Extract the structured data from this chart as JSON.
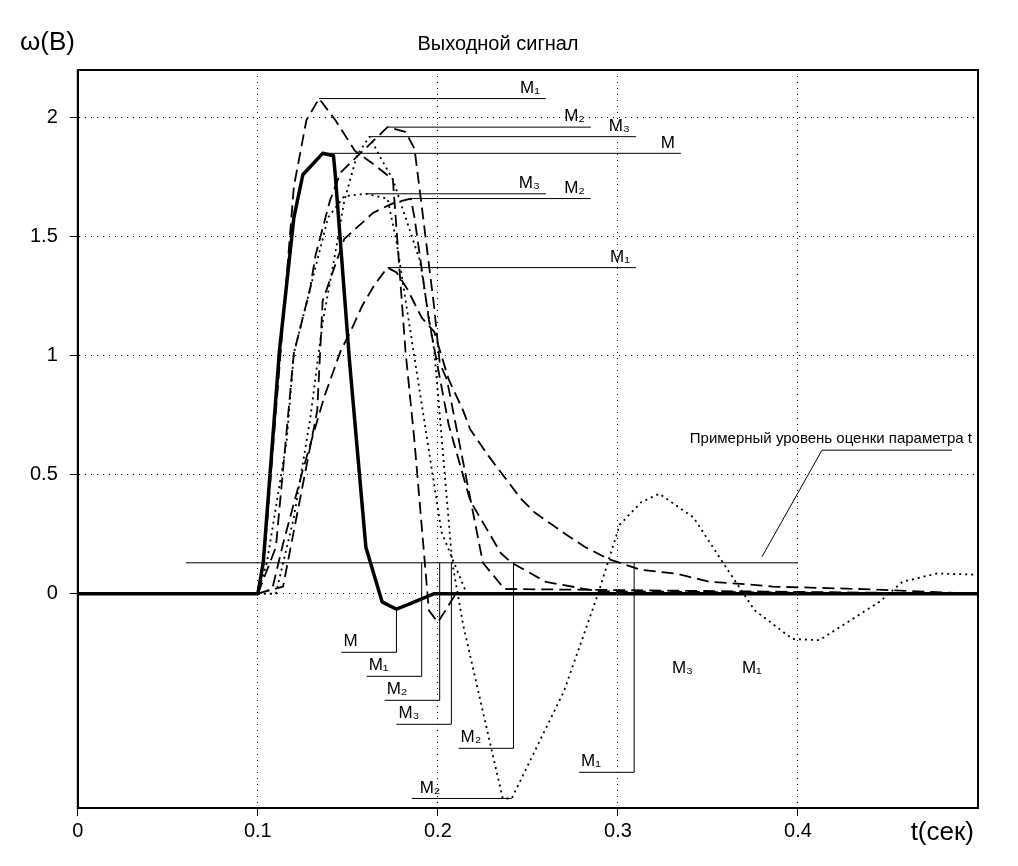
{
  "chart_data": {
    "type": "line",
    "title": "Выходной сигнал",
    "xlabel": "t(сек)",
    "ylabel": "ω(B)",
    "xlim": [
      0,
      0.5
    ],
    "xticks": [
      0,
      0.1,
      0.2,
      0.3,
      0.4
    ],
    "ylim": [
      -0.9,
      2.2
    ],
    "yticks": [
      0,
      0.5,
      1,
      1.5,
      2
    ],
    "grid": true,
    "legend": false,
    "marker": "none",
    "series": [
      {
        "color": "#000000",
        "line_style": "solid",
        "x": [
          0,
          0.1,
          0.103,
          0.112,
          0.12,
          0.125,
          0.136,
          0.142,
          0.143,
          0.151,
          0.16,
          0.169,
          0.177,
          0.185,
          0.198,
          0.5
        ],
        "values": [
          0,
          0,
          0.13,
          1.02,
          1.58,
          1.76,
          1.85,
          1.84,
          1.76,
          0.97,
          0.195,
          -0.034,
          -0.065,
          -0.04,
          0,
          0
        ]
      },
      {
        "color": "#000000",
        "line_style": "dashed",
        "x": [
          0,
          0.1,
          0.104,
          0.12,
          0.127,
          0.134,
          0.143,
          0.154,
          0.165,
          0.175,
          0.182,
          0.187,
          0.195,
          0.2,
          0.21,
          0.5
        ],
        "values": [
          0,
          0,
          0.195,
          1.71,
          1.99,
          2.08,
          1.99,
          1.86,
          1.8,
          1.74,
          1.02,
          0.64,
          -0.07,
          -0.12,
          0,
          0
        ]
      },
      {
        "color": "#000000",
        "line_style": "dashed",
        "x": [
          0,
          0.1,
          0.11,
          0.12,
          0.129,
          0.132,
          0.14,
          0.146,
          0.172,
          0.182,
          0.187,
          0.191,
          0.198,
          0.201,
          0.205,
          0.218,
          0.225,
          0.237,
          0.5
        ],
        "values": [
          0,
          0,
          0.195,
          1.01,
          1.28,
          1.42,
          1.65,
          1.77,
          1.96,
          1.94,
          1.87,
          1.63,
          1.2,
          0.97,
          0.9,
          0.4,
          0.13,
          0.02,
          0
        ]
      },
      {
        "color": "#000000",
        "line_style": "dotted",
        "x": [
          0,
          0.1,
          0.11,
          0.12,
          0.129,
          0.136,
          0.143,
          0.148,
          0.155,
          0.162,
          0.169,
          0.175,
          0.19,
          0.198,
          0.208,
          0.214,
          0.236,
          0.241,
          0.27,
          0.289,
          0.301,
          0.313,
          0.323,
          0.342,
          0.361,
          0.376,
          0.397,
          0.412,
          0.446,
          0.458,
          0.477,
          0.5
        ],
        "values": [
          0,
          0,
          0,
          0.32,
          0.73,
          1.14,
          1.43,
          1.65,
          1.84,
          1.92,
          1.82,
          1.74,
          1.4,
          1.02,
          0.13,
          -0.13,
          -0.86,
          -0.86,
          -0.41,
          0,
          0.29,
          0.385,
          0.42,
          0.32,
          0.1,
          -0.07,
          -0.19,
          -0.195,
          -0.03,
          0.05,
          0.085,
          0.08
        ]
      },
      {
        "color": "#000000",
        "line_style": "dotted",
        "x": [
          0,
          0.1,
          0.105,
          0.116,
          0.12,
          0.139,
          0.148,
          0.16,
          0.172,
          0.177,
          0.202,
          0.216,
          0.5
        ],
        "values": [
          0,
          0,
          0.13,
          0.64,
          1.01,
          1.58,
          1.67,
          1.68,
          1.66,
          1.48,
          0.26,
          0,
          0
        ]
      },
      {
        "color": "#000000",
        "line_style": "dashed",
        "x": [
          0,
          0.1,
          0.114,
          0.133,
          0.136,
          0.148,
          0.164,
          0.175,
          0.185,
          0.187,
          0.195,
          0.206,
          0.218,
          0.235,
          0.241,
          0.26,
          0.289,
          0.5
        ],
        "values": [
          0,
          0,
          0.03,
          0.77,
          1.23,
          1.49,
          1.6,
          1.64,
          1.66,
          1.58,
          1.15,
          0.71,
          0.39,
          0.17,
          0.13,
          0.05,
          0.01,
          0
        ]
      },
      {
        "color": "#000000",
        "line_style": "dashed",
        "x": [
          0,
          0.1,
          0.108,
          0.114,
          0.125,
          0.137,
          0.146,
          0.152,
          0.158,
          0.165,
          0.172,
          0.177,
          0.183,
          0.191,
          0.198,
          0.206,
          0.214,
          0.218,
          0.228,
          0.234,
          0.246,
          0.254,
          0.271,
          0.282,
          0.295,
          0.313,
          0.332,
          0.351,
          0.371,
          0.386,
          0.434,
          0.5
        ],
        "values": [
          0,
          0,
          0.02,
          0.21,
          0.52,
          0.83,
          1.02,
          1.11,
          1.21,
          1.3,
          1.37,
          1.35,
          1.28,
          1.16,
          1.1,
          0.9,
          0.77,
          0.69,
          0.58,
          0.52,
          0.4,
          0.34,
          0.25,
          0.195,
          0.145,
          0.1,
          0.085,
          0.05,
          0.04,
          0.03,
          0.02,
          0
        ]
      }
    ],
    "ref_lines": [
      {
        "axis": "y",
        "value": 0.13,
        "label": "Примерный уровень оценки параметра t",
        "color": "#000000"
      }
    ],
    "annotations": [
      {
        "text": "M₁",
        "x": 0.134,
        "y": 2.08
      },
      {
        "text": "M₂",
        "x": 0.172,
        "y": 1.96
      },
      {
        "text": "M₃",
        "x": 0.162,
        "y": 1.92
      },
      {
        "text": "M",
        "x": 0.136,
        "y": 1.85
      },
      {
        "text": "M₃",
        "x": 0.16,
        "y": 1.68
      },
      {
        "text": "M₂",
        "x": 0.185,
        "y": 1.66
      },
      {
        "text": "M₁",
        "x": 0.172,
        "y": 1.37
      },
      {
        "text": "M",
        "x": 0.177,
        "y": -0.065
      },
      {
        "text": "M₁",
        "x": 0.191,
        "y": 0.13
      },
      {
        "text": "M₂",
        "x": 0.201,
        "y": 0.13
      },
      {
        "text": "M₃",
        "x": 0.2075,
        "y": 0.13
      },
      "M₃",
      {
        "text": "M₂",
        "x": 0.242,
        "y": 0.13
      },
      {
        "text": "M₁",
        "x": 0.309,
        "y": 0.13
      },
      "M₁",
      {
        "text": "M₂",
        "x": 0.241,
        "y": -0.86
      }
    ]
  }
}
